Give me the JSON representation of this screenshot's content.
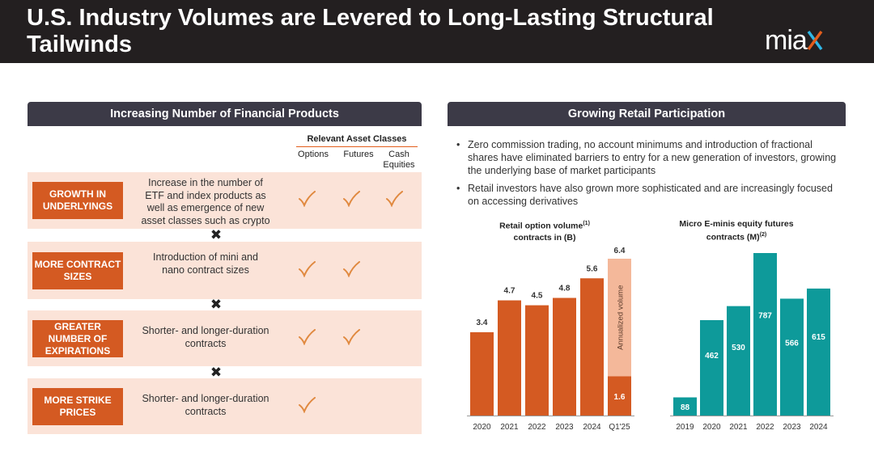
{
  "header": {
    "title": "U.S. Industry Volumes are Levered to Long-Lasting Structural Tailwinds",
    "logo_text": "miax"
  },
  "left_panel": {
    "title": "Increasing Number of Financial Products",
    "asset_classes_title": "Relevant Asset Classes",
    "asset_classes": [
      "Options",
      "Futures",
      "Cash Equities"
    ],
    "rows": [
      {
        "label": "GROWTH IN UNDERLYINGS",
        "description": "Increase in the number of ETF and index products as well as emergence of new asset classes such as crypto",
        "checks": [
          true,
          true,
          true
        ]
      },
      {
        "label": "MORE CONTRACT SIZES",
        "description": "Introduction of mini and nano contract sizes",
        "checks": [
          true,
          true,
          false
        ]
      },
      {
        "label": "GREATER NUMBER OF EXPIRATIONS",
        "description": "Shorter- and longer-duration contracts",
        "checks": [
          true,
          true,
          false
        ]
      },
      {
        "label": "MORE STRIKE PRICES",
        "description": "Shorter- and longer-duration contracts",
        "checks": [
          true,
          false,
          false
        ]
      }
    ],
    "separator_symbol": "✖",
    "check_color": "#e0893f",
    "accent_color": "#d45a22"
  },
  "right_panel": {
    "title": "Growing Retail Participation",
    "bullets": [
      "Zero commission trading, no account minimums and introduction of fractional shares have eliminated barriers to entry for a new generation of investors, growing the underlying base of market participants",
      "Retail investors have also grown more sophisticated and are increasingly focused on accessing derivatives"
    ]
  },
  "chart_data": [
    {
      "type": "bar",
      "title": "Retail option volume",
      "title_line2": "contracts in (B)",
      "footnote_marker": "(1)",
      "categories": [
        "2020",
        "2021",
        "2022",
        "2023",
        "2024",
        "Q1'25"
      ],
      "values": [
        3.4,
        4.7,
        4.5,
        4.8,
        5.6,
        1.6
      ],
      "annualized": {
        "category": "Q1'25",
        "value": 6.4,
        "label": "Annualized volume"
      },
      "ylim": [
        0,
        6.4
      ],
      "color": "#d45a22",
      "annualized_color": "#f4b89a",
      "grid": false
    },
    {
      "type": "bar",
      "title": "Micro E-minis equity futures",
      "title_line2": "contracts (M)",
      "footnote_marker": "(2)",
      "categories": [
        "2019",
        "2020",
        "2021",
        "2022",
        "2023",
        "2024"
      ],
      "values": [
        88,
        462,
        530,
        787,
        566,
        615
      ],
      "ylim": [
        0,
        787
      ],
      "color": "#0e9a9a",
      "grid": false
    }
  ]
}
